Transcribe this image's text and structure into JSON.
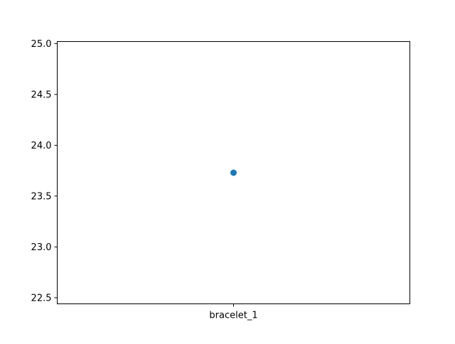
{
  "chart_data": {
    "type": "scatter",
    "title": "",
    "xlabel": "",
    "ylabel": "",
    "categories": [
      "bracelet_1"
    ],
    "series": [
      {
        "values": [
          23.73
        ],
        "color": "#1f77b4"
      }
    ],
    "ylim": [
      22.44,
      25.02
    ],
    "yticks": [
      22.5,
      23.0,
      23.5,
      24.0,
      24.5,
      25.0
    ],
    "ytick_labels": [
      "22.5",
      "23.0",
      "23.5",
      "24.0",
      "24.5",
      "25.0"
    ],
    "grid": false,
    "legend": "none"
  }
}
